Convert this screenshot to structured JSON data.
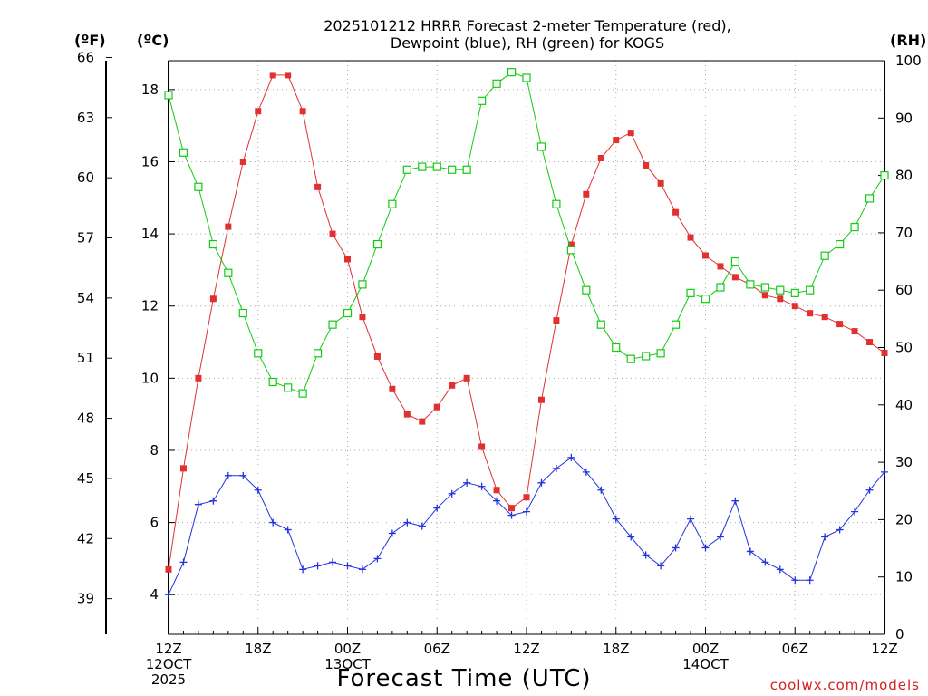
{
  "title_lines": [
    "2025101212 HRRR Forecast 2-meter Temperature (red),",
    "Dewpoint (blue), RH (green) for KOGS"
  ],
  "credit": "coolwx.com/models",
  "colors": {
    "temperature": "#e03030",
    "dewpoint": "#2233dd",
    "rh": "#11cc11",
    "grid": "#aaaaaa",
    "axis": "#000000"
  },
  "chart_data": {
    "type": "line",
    "title": "2025101212 HRRR Forecast 2-meter Temperature (red), Dewpoint (blue), RH (green) for KOGS",
    "xlabel": "Forecast Time (UTC)",
    "x": [
      "2025-10-12 12Z",
      "13Z",
      "14Z",
      "15Z",
      "16Z",
      "17Z",
      "18Z",
      "19Z",
      "20Z",
      "21Z",
      "22Z",
      "23Z",
      "2025-10-13 00Z",
      "01Z",
      "02Z",
      "03Z",
      "04Z",
      "05Z",
      "06Z",
      "07Z",
      "08Z",
      "09Z",
      "10Z",
      "11Z",
      "12Z",
      "13Z",
      "14Z",
      "15Z",
      "16Z",
      "17Z",
      "18Z",
      "19Z",
      "20Z",
      "21Z",
      "22Z",
      "23Z",
      "2025-10-14 00Z",
      "01Z",
      "02Z",
      "03Z",
      "04Z",
      "05Z",
      "06Z",
      "07Z",
      "08Z",
      "09Z",
      "10Z",
      "11Z",
      "12Z"
    ],
    "x_tick_labels": [
      {
        "at": 0,
        "lines": [
          "12Z",
          "12OCT",
          "2025"
        ]
      },
      {
        "at": 6,
        "lines": [
          "18Z"
        ]
      },
      {
        "at": 12,
        "lines": [
          "00Z",
          "13OCT"
        ]
      },
      {
        "at": 18,
        "lines": [
          "06Z"
        ]
      },
      {
        "at": 24,
        "lines": [
          "12Z"
        ]
      },
      {
        "at": 30,
        "lines": [
          "18Z"
        ]
      },
      {
        "at": 36,
        "lines": [
          "00Z",
          "14OCT"
        ]
      },
      {
        "at": 42,
        "lines": [
          "06Z"
        ]
      },
      {
        "at": 48,
        "lines": [
          "12Z"
        ]
      }
    ],
    "axes": {
      "celsius": {
        "label": "(ºC)",
        "range": [
          2.9,
          18.8
        ],
        "ticks": [
          4,
          6,
          8,
          10,
          12,
          14,
          16,
          18
        ]
      },
      "fahrenheit": {
        "label": "(ºF)",
        "ticks": [
          39,
          42,
          45,
          48,
          51,
          54,
          57,
          60,
          63,
          66
        ]
      },
      "rh": {
        "label": "(RH)",
        "range": [
          0,
          100
        ],
        "ticks": [
          0,
          10,
          20,
          30,
          40,
          50,
          60,
          70,
          80,
          90,
          100
        ]
      }
    },
    "grid": true,
    "series": [
      {
        "key": "temperature",
        "axis": "celsius",
        "marker": "filled-square",
        "values": [
          4.7,
          7.5,
          10.0,
          12.2,
          14.2,
          16.0,
          17.4,
          18.4,
          18.4,
          17.4,
          15.3,
          14.0,
          13.3,
          11.7,
          10.6,
          9.7,
          9.0,
          8.8,
          9.2,
          9.8,
          10.0,
          8.1,
          6.9,
          6.4,
          6.7,
          9.4,
          11.6,
          13.7,
          15.1,
          16.1,
          16.6,
          16.8,
          15.9,
          15.4,
          14.6,
          13.9,
          13.4,
          13.1,
          12.8,
          12.6,
          12.3,
          12.2,
          12.0,
          11.8,
          11.7,
          11.5,
          11.3,
          11.0,
          10.7
        ]
      },
      {
        "key": "dewpoint",
        "axis": "celsius",
        "marker": "plus",
        "values": [
          4.0,
          4.9,
          6.5,
          6.6,
          7.3,
          7.3,
          6.9,
          6.0,
          5.8,
          4.7,
          4.8,
          4.9,
          4.8,
          4.7,
          5.0,
          5.7,
          6.0,
          5.9,
          6.4,
          6.8,
          7.1,
          7.0,
          6.6,
          6.2,
          6.3,
          7.1,
          7.5,
          7.8,
          7.4,
          6.9,
          6.1,
          5.6,
          5.1,
          4.8,
          5.3,
          6.1,
          5.3,
          5.6,
          6.6,
          5.2,
          4.9,
          4.7,
          4.4,
          4.4,
          5.6,
          5.8,
          6.3,
          6.9,
          7.4
        ]
      },
      {
        "key": "rh",
        "axis": "rh",
        "marker": "open-square",
        "values": [
          94,
          84,
          78,
          68,
          63,
          56,
          49,
          44,
          43,
          42,
          49,
          54,
          56,
          61,
          68,
          75,
          81,
          81.5,
          81.5,
          81,
          81,
          93,
          96,
          98,
          97,
          85,
          75,
          67,
          60,
          54,
          50,
          48,
          48.5,
          49,
          54,
          59.5,
          58.5,
          60.5,
          65,
          61,
          60.5,
          60,
          59.5,
          60,
          66,
          68,
          71,
          76,
          80
        ]
      }
    ]
  }
}
